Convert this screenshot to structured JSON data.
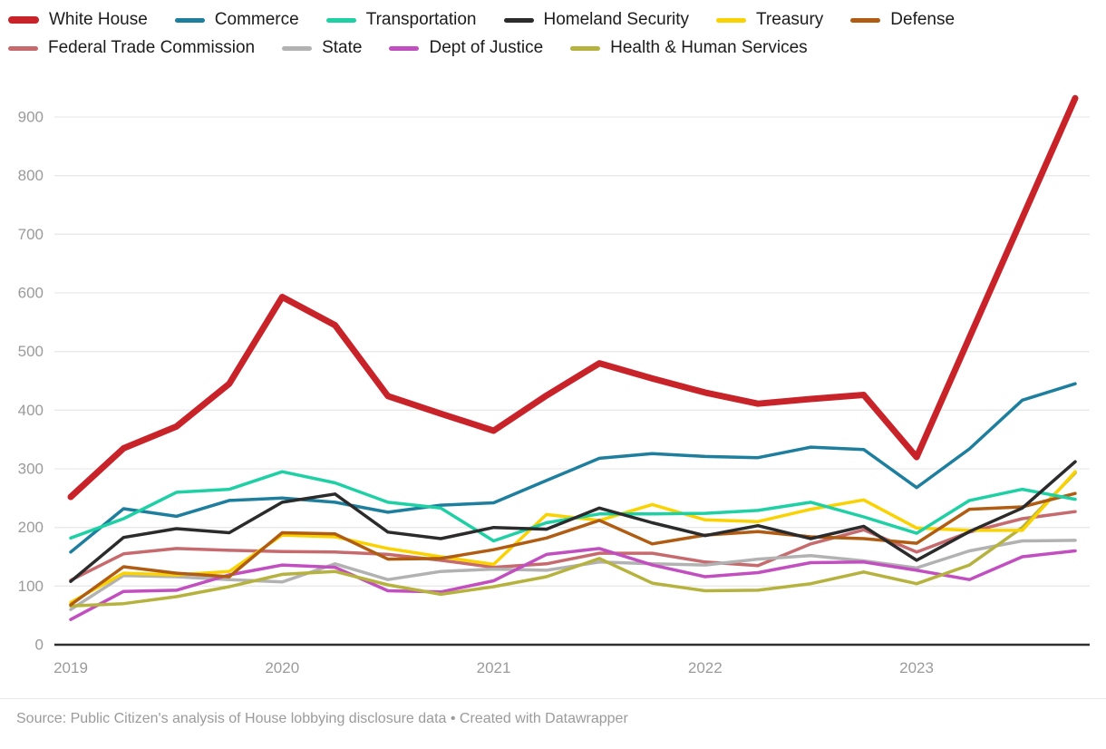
{
  "legend": {
    "rows": [
      [
        "White House",
        "Commerce",
        "Transportation",
        "Homeland Security",
        "Treasury",
        "Defense"
      ],
      [
        "Federal Trade Commission",
        "State",
        "Dept of Justice",
        "Health & Human Services"
      ]
    ]
  },
  "chart_data": {
    "type": "line",
    "title": "",
    "x": [
      "2019 Q1",
      "2019 Q2",
      "2019 Q3",
      "2019 Q4",
      "2020 Q1",
      "2020 Q2",
      "2020 Q3",
      "2020 Q4",
      "2021 Q1",
      "2021 Q2",
      "2021 Q3",
      "2021 Q4",
      "2022 Q1",
      "2022 Q2",
      "2022 Q3",
      "2022 Q4",
      "2023 Q1",
      "2023 Q2",
      "2023 Q3",
      "2023 Q4"
    ],
    "x_tick_labels": [
      "2019",
      "2020",
      "2021",
      "2022",
      "2023"
    ],
    "yticks": [
      0,
      100,
      200,
      300,
      400,
      500,
      600,
      700,
      800,
      900
    ],
    "ylim": [
      0,
      950
    ],
    "grid": "horizontal",
    "legend_position": "top",
    "series": [
      {
        "name": "White House",
        "color": "#c9232a",
        "thick": true,
        "values": [
          252,
          335,
          372,
          445,
          593,
          545,
          424,
          394,
          365,
          425,
          480,
          454,
          430,
          411,
          419,
          426,
          320,
          524,
          728,
          932
        ]
      },
      {
        "name": "Commerce",
        "color": "#1d7e9e",
        "thick": false,
        "values": [
          158,
          232,
          219,
          246,
          250,
          243,
          226,
          238,
          242,
          280,
          318,
          326,
          321,
          319,
          337,
          333,
          268,
          334,
          417,
          445
        ]
      },
      {
        "name": "Transportation",
        "color": "#1fd0a5",
        "thick": false,
        "values": [
          182,
          215,
          260,
          265,
          295,
          276,
          243,
          233,
          177,
          208,
          223,
          223,
          224,
          229,
          243,
          218,
          190,
          246,
          265,
          248
        ]
      },
      {
        "name": "Homeland Security",
        "color": "#2b2b2b",
        "thick": false,
        "values": [
          108,
          183,
          198,
          191,
          243,
          257,
          192,
          181,
          200,
          197,
          233,
          208,
          186,
          203,
          181,
          202,
          144,
          193,
          233,
          312
        ]
      },
      {
        "name": "Treasury",
        "color": "#fad201",
        "thick": false,
        "values": [
          72,
          122,
          119,
          125,
          187,
          184,
          164,
          150,
          137,
          222,
          212,
          239,
          213,
          210,
          231,
          247,
          199,
          195,
          195,
          295
        ]
      },
      {
        "name": "Defense",
        "color": "#b05c12",
        "thick": false,
        "values": [
          68,
          133,
          122,
          116,
          191,
          189,
          146,
          147,
          162,
          182,
          212,
          172,
          187,
          193,
          184,
          181,
          173,
          231,
          235,
          258
        ]
      },
      {
        "name": "Federal Trade Commission",
        "color": "#c66a6e",
        "thick": false,
        "values": [
          110,
          155,
          164,
          161,
          159,
          158,
          154,
          144,
          132,
          138,
          156,
          156,
          141,
          135,
          172,
          196,
          158,
          192,
          215,
          227
        ]
      },
      {
        "name": "State",
        "color": "#b2b2b2",
        "thick": false,
        "values": [
          60,
          118,
          116,
          111,
          107,
          138,
          111,
          125,
          129,
          127,
          141,
          138,
          136,
          146,
          152,
          143,
          131,
          160,
          177,
          178
        ]
      },
      {
        "name": "Dept of Justice",
        "color": "#c24fc0",
        "thick": false,
        "values": [
          43,
          91,
          93,
          119,
          136,
          132,
          92,
          90,
          109,
          154,
          164,
          136,
          116,
          123,
          140,
          141,
          127,
          111,
          150,
          160
        ]
      },
      {
        "name": "Health & Human Services",
        "color": "#b5b23e",
        "thick": false,
        "values": [
          66,
          70,
          82,
          99,
          120,
          125,
          102,
          86,
          99,
          116,
          147,
          105,
          92,
          93,
          104,
          124,
          104,
          136,
          200,
          293
        ]
      }
    ],
    "draw_order": [
      "Federal Trade Commission",
      "State",
      "Dept of Justice",
      "Health & Human Services",
      "Treasury",
      "Defense",
      "Commerce",
      "Transportation",
      "Homeland Security",
      "White House"
    ]
  },
  "footer": {
    "source_note": "Source: Public Citizen's analysis of House lobbying disclosure data • Created with Datawrapper"
  }
}
